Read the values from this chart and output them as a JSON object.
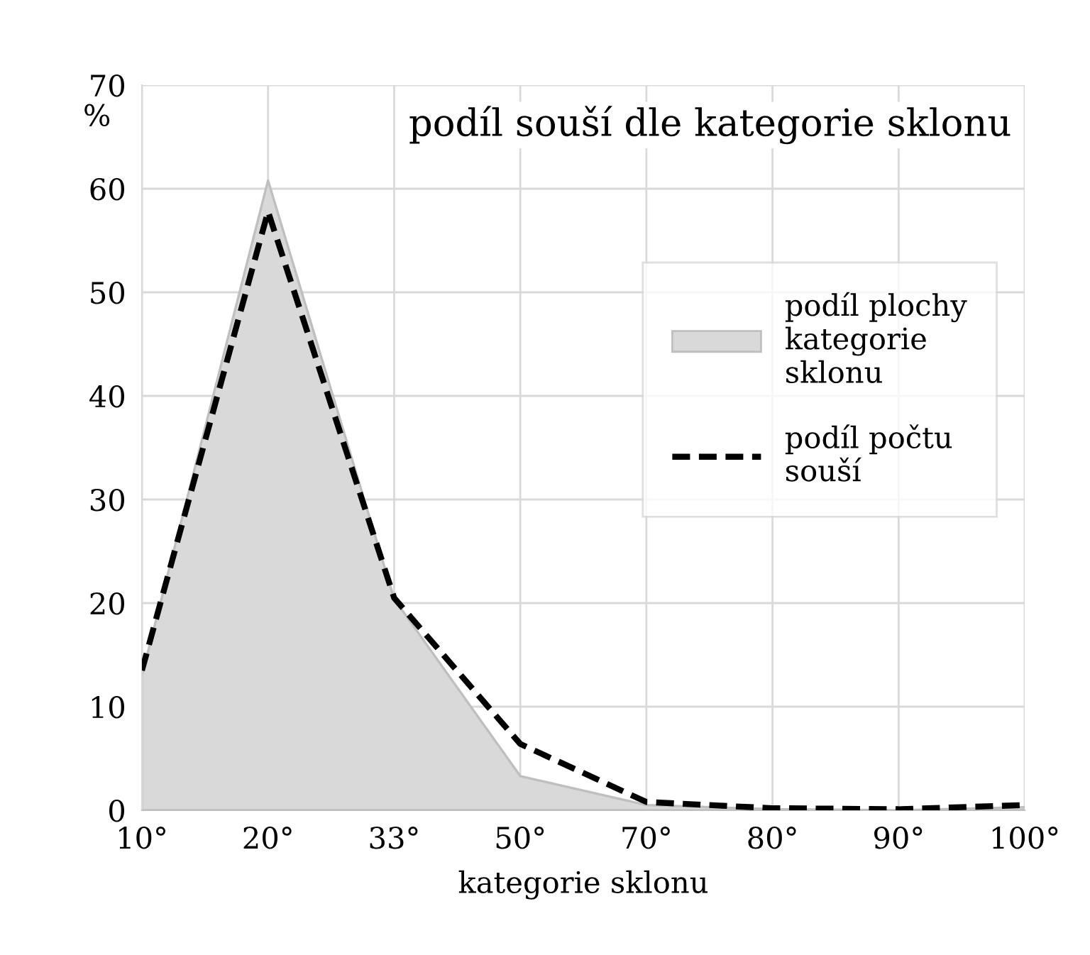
{
  "chart_data": {
    "type": "area",
    "title": "podíl souší dle kategorie sklonu",
    "xlabel": "kategorie sklonu",
    "ylabel": "%",
    "categories": [
      "10°",
      "20°",
      "33°",
      "50°",
      "70°",
      "80°",
      "90°",
      "100°"
    ],
    "series": [
      {
        "name": "podíl plochy\nkategorie\nsklonu",
        "color": "#d9d9d9",
        "values": [
          13,
          60.8,
          20.4,
          3.3,
          0.5,
          0.1,
          0,
          0.3
        ]
      },
      {
        "name": "podíl počtu\nsouší",
        "type": "line",
        "line_style": "dashed",
        "color": "#000000",
        "values": [
          13.5,
          57.8,
          20.5,
          6.4,
          0.8,
          0.2,
          0.1,
          0.5
        ]
      }
    ],
    "ylim": [
      0,
      70
    ],
    "yticks": [
      0,
      10,
      20,
      30,
      40,
      50,
      60,
      70
    ],
    "grid": true,
    "legend": "right"
  }
}
